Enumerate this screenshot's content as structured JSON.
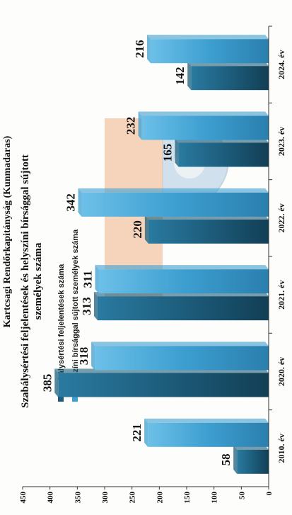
{
  "header": {
    "text": "Kartcsagi Rendőrkapitányság (Kunmadaras)"
  },
  "chart_data": {
    "type": "bar",
    "title_lines": [
      "Szabálysértési feljelentések és helyszíni bírsággal sújtott",
      "személyek száma"
    ],
    "categories": [
      "2010. év",
      "2020. év",
      "2021. év",
      "2022. év",
      "2023. év",
      "2024. év"
    ],
    "series": [
      {
        "name": "Szabálysértési feljelentések száma",
        "values": [
          58,
          385,
          313,
          220,
          165,
          142
        ],
        "color": "#1d5d7c"
      },
      {
        "name": "Helyszíni bírsággal sújtott személyek száma",
        "values": [
          221,
          318,
          311,
          342,
          232,
          216
        ],
        "color": "#3d9fd0"
      }
    ],
    "ylim": [
      0,
      450
    ],
    "yticks": [
      0,
      50,
      100,
      150,
      200,
      250,
      300,
      350,
      400,
      450
    ],
    "grid": false,
    "legend": "top-left"
  }
}
